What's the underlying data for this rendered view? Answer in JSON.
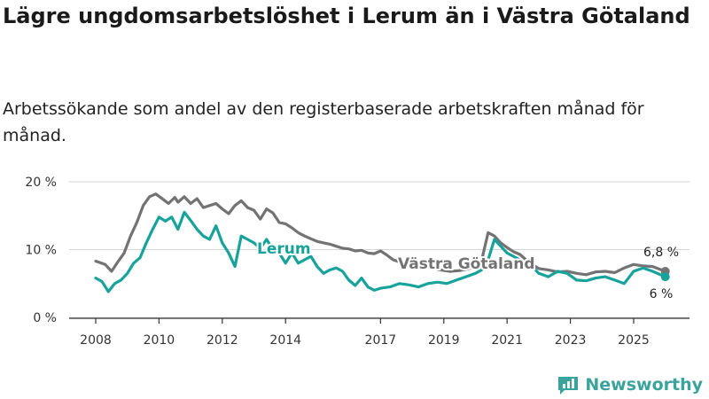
{
  "title": "Lägre ungdomsarbetslöshet i Lerum än i Västra Götaland",
  "subtitle": "Arbetssökande som andel av den registerbaserade arbetskraften månad för månad.",
  "brand": "Newsworthy",
  "colors": {
    "lerum": "#17a39b",
    "vg": "#737373",
    "grid": "#d6d6d6",
    "brand": "#3aa39b"
  },
  "chart_data": {
    "type": "line",
    "ylim": [
      0,
      20
    ],
    "y_ticks": [
      {
        "value": 0,
        "label": "0 %"
      },
      {
        "value": 10,
        "label": "10 %"
      },
      {
        "value": 20,
        "label": "20 %"
      }
    ],
    "x_range": [
      2008,
      2026.5
    ],
    "x_ticks": [
      {
        "value": 2008,
        "label": "2008"
      },
      {
        "value": 2010,
        "label": "2010"
      },
      {
        "value": 2012,
        "label": "2012"
      },
      {
        "value": 2014,
        "label": "2014"
      },
      {
        "value": 2017,
        "label": "2017"
      },
      {
        "value": 2019,
        "label": "2019"
      },
      {
        "value": 2021,
        "label": "2021"
      },
      {
        "value": 2023,
        "label": "2023"
      },
      {
        "value": 2025,
        "label": "2025"
      }
    ],
    "series": [
      {
        "name": "Västra Götaland",
        "label": "Västra Götaland",
        "color": "#737373",
        "x": [
          2008.0,
          2008.3,
          2008.5,
          2008.7,
          2008.9,
          2009.1,
          2009.3,
          2009.5,
          2009.7,
          2009.9,
          2010.1,
          2010.3,
          2010.5,
          2010.6,
          2010.8,
          2011.0,
          2011.2,
          2011.4,
          2011.6,
          2011.8,
          2012.0,
          2012.2,
          2012.4,
          2012.6,
          2012.8,
          2013.0,
          2013.2,
          2013.4,
          2013.6,
          2013.8,
          2014.0,
          2014.2,
          2014.4,
          2014.6,
          2014.8,
          2015.0,
          2015.2,
          2015.4,
          2015.6,
          2015.8,
          2016.0,
          2016.2,
          2016.4,
          2016.6,
          2016.8,
          2017.0,
          2017.2,
          2017.4,
          2017.6,
          2017.8,
          2018.0,
          2018.3,
          2018.6,
          2018.9,
          2019.2,
          2019.5,
          2019.8,
          2020.0,
          2020.2,
          2020.4,
          2020.6,
          2020.8,
          2021.0,
          2021.2,
          2021.4,
          2021.6,
          2021.8,
          2022.0,
          2022.3,
          2022.6,
          2022.9,
          2023.2,
          2023.5,
          2023.8,
          2024.1,
          2024.4,
          2024.7,
          2025.0,
          2025.3,
          2025.6,
          2026.0
        ],
        "y": [
          8.3,
          7.8,
          6.8,
          8.2,
          9.5,
          12.0,
          14.0,
          16.5,
          17.8,
          18.2,
          17.5,
          16.8,
          17.7,
          17.0,
          17.8,
          16.8,
          17.5,
          16.2,
          16.5,
          16.8,
          16.0,
          15.3,
          16.5,
          17.2,
          16.2,
          15.8,
          14.5,
          16.0,
          15.4,
          14.0,
          13.8,
          13.2,
          12.5,
          12.0,
          11.6,
          11.2,
          11.0,
          10.8,
          10.5,
          10.2,
          10.1,
          9.8,
          9.9,
          9.5,
          9.4,
          9.8,
          9.2,
          8.5,
          8.2,
          8.0,
          7.8,
          7.5,
          7.3,
          7.0,
          6.8,
          6.9,
          7.2,
          7.6,
          8.5,
          12.5,
          12.0,
          11.0,
          10.3,
          9.7,
          9.3,
          8.5,
          7.8,
          7.2,
          7.0,
          6.7,
          6.8,
          6.5,
          6.3,
          6.7,
          6.8,
          6.6,
          7.3,
          7.8,
          7.6,
          7.5,
          6.8
        ]
      },
      {
        "name": "Lerum",
        "label": "Lerum",
        "color": "#17a39b",
        "x": [
          2008.0,
          2008.2,
          2008.4,
          2008.6,
          2008.8,
          2009.0,
          2009.2,
          2009.4,
          2009.6,
          2009.8,
          2010.0,
          2010.2,
          2010.4,
          2010.6,
          2010.8,
          2011.0,
          2011.2,
          2011.4,
          2011.6,
          2011.8,
          2012.0,
          2012.2,
          2012.4,
          2012.6,
          2012.8,
          2013.0,
          2013.2,
          2013.4,
          2013.6,
          2013.8,
          2014.0,
          2014.2,
          2014.4,
          2014.6,
          2014.8,
          2015.0,
          2015.2,
          2015.4,
          2015.6,
          2015.8,
          2016.0,
          2016.2,
          2016.4,
          2016.6,
          2016.8,
          2017.0,
          2017.3,
          2017.6,
          2017.9,
          2018.2,
          2018.5,
          2018.8,
          2019.1,
          2019.4,
          2019.7,
          2020.0,
          2020.2,
          2020.4,
          2020.6,
          2020.8,
          2021.0,
          2021.2,
          2021.4,
          2021.6,
          2021.8,
          2022.0,
          2022.3,
          2022.6,
          2022.9,
          2023.2,
          2023.5,
          2023.8,
          2024.1,
          2024.4,
          2024.7,
          2025.0,
          2025.3,
          2025.6,
          2026.0
        ],
        "y": [
          5.8,
          5.3,
          3.8,
          5.0,
          5.5,
          6.5,
          8.0,
          8.8,
          11.0,
          13.0,
          14.8,
          14.2,
          14.8,
          13.0,
          15.5,
          14.3,
          13.0,
          12.0,
          11.5,
          13.5,
          11.0,
          9.5,
          7.5,
          12.0,
          11.5,
          11.0,
          10.2,
          11.5,
          10.0,
          9.5,
          8.0,
          9.5,
          8.0,
          8.5,
          9.0,
          7.5,
          6.5,
          7.0,
          7.3,
          6.8,
          5.5,
          4.7,
          5.8,
          4.5,
          4.0,
          4.3,
          4.5,
          5.0,
          4.8,
          4.5,
          5.0,
          5.2,
          5.0,
          5.5,
          6.0,
          6.5,
          7.0,
          8.5,
          11.5,
          10.5,
          9.5,
          9.0,
          8.5,
          8.0,
          7.5,
          6.5,
          6.0,
          6.8,
          6.5,
          5.5,
          5.4,
          5.8,
          6.0,
          5.5,
          5.0,
          6.8,
          7.3,
          6.8,
          6.0
        ]
      }
    ],
    "end_labels": [
      {
        "series": "Västra Götaland",
        "text": "6,8 %"
      },
      {
        "series": "Lerum",
        "text": "6 %"
      }
    ]
  }
}
